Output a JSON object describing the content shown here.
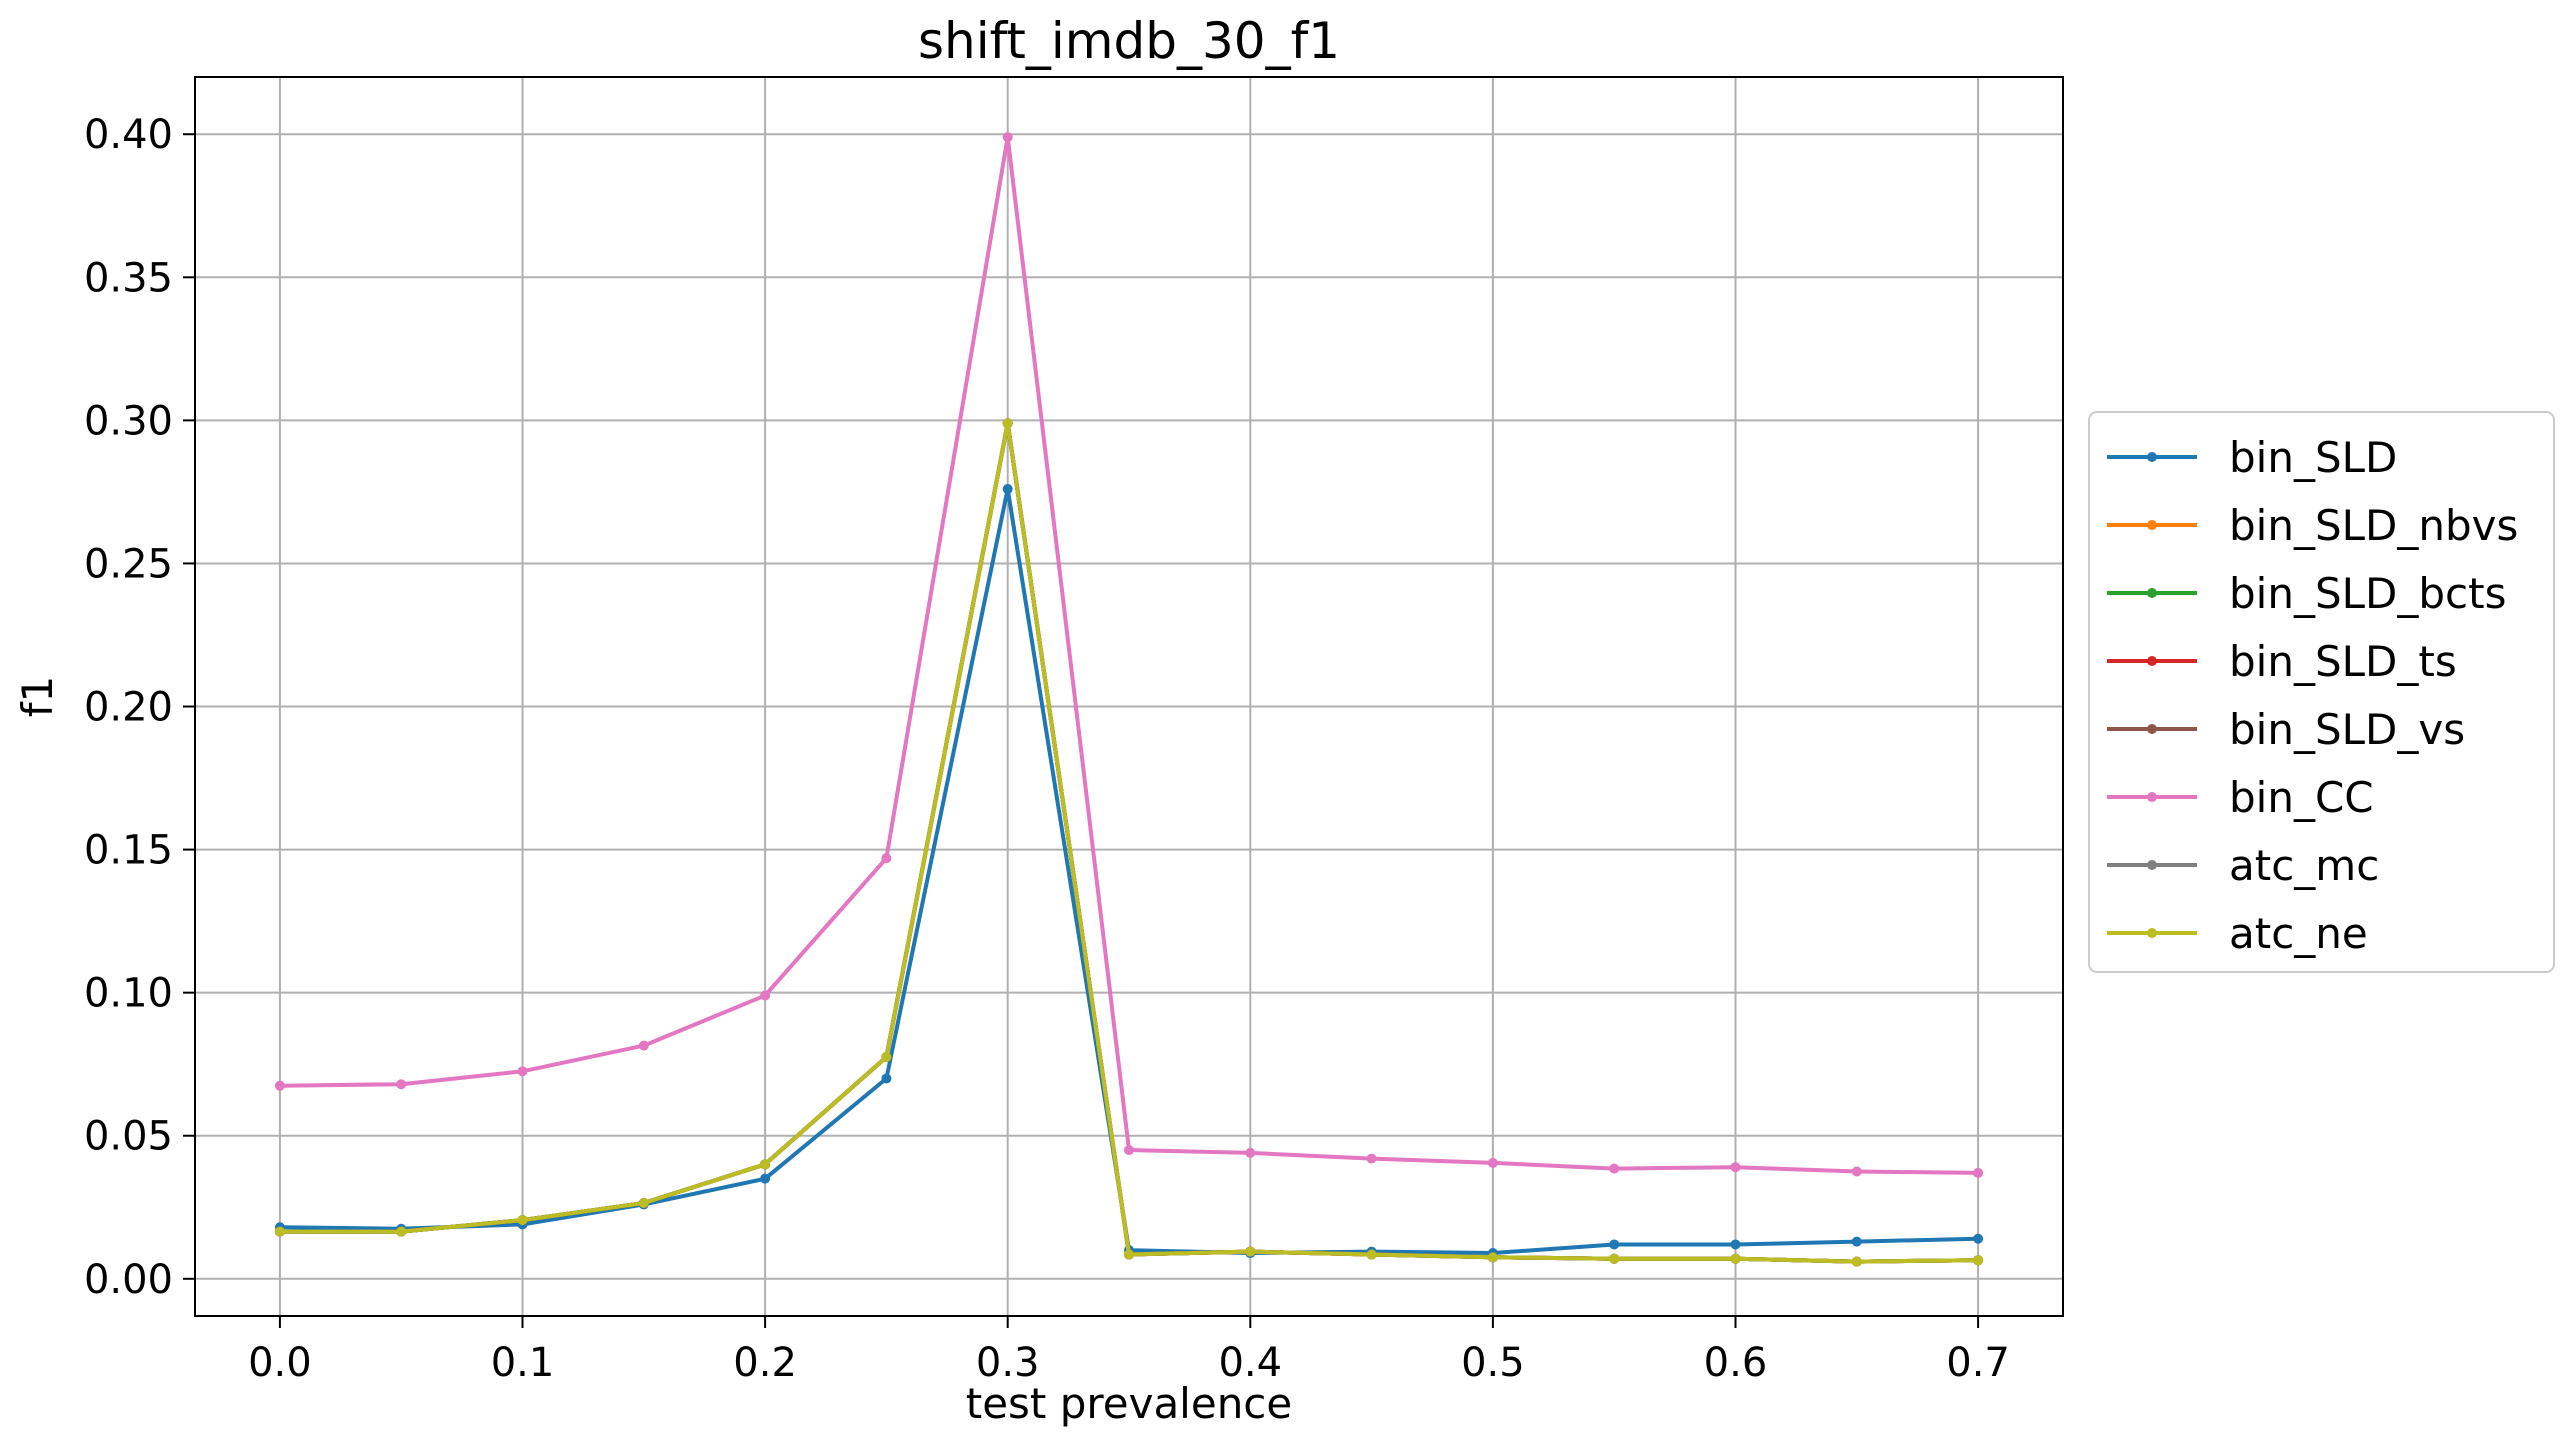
{
  "chart_data": {
    "type": "line",
    "title": "shift_imdb_30_f1",
    "xlabel": "test prevalence",
    "ylabel": "f1",
    "xlim": [
      -0.035,
      0.735
    ],
    "ylim": [
      -0.013,
      0.42
    ],
    "xticks": [
      0.0,
      0.1,
      0.2,
      0.3,
      0.4,
      0.5,
      0.6,
      0.7
    ],
    "xtick_labels": [
      "0.0",
      "0.1",
      "0.2",
      "0.3",
      "0.4",
      "0.5",
      "0.6",
      "0.7"
    ],
    "yticks": [
      0.0,
      0.05,
      0.1,
      0.15,
      0.2,
      0.25,
      0.3,
      0.35,
      0.4
    ],
    "ytick_labels": [
      "0.00",
      "0.05",
      "0.10",
      "0.15",
      "0.20",
      "0.25",
      "0.30",
      "0.35",
      "0.40"
    ],
    "grid": true,
    "legend_position": "right",
    "x": [
      0.0,
      0.05,
      0.1,
      0.15,
      0.2,
      0.25,
      0.3,
      0.35,
      0.4,
      0.45,
      0.5,
      0.55,
      0.6,
      0.65,
      0.7
    ],
    "series": [
      {
        "name": "bin_SLD",
        "color": "#1f77b4",
        "values": [
          0.018,
          0.0175,
          0.019,
          0.026,
          0.035,
          0.07,
          0.276,
          0.01,
          0.009,
          0.0095,
          0.009,
          0.012,
          0.012,
          0.013,
          0.014
        ]
      },
      {
        "name": "bin_SLD_nbvs",
        "color": "#ff7f0e",
        "values": [
          0.0165,
          0.0165,
          0.0205,
          0.0265,
          0.04,
          0.0775,
          0.299,
          0.0085,
          0.0095,
          0.0085,
          0.0075,
          0.007,
          0.007,
          0.006,
          0.0065
        ]
      },
      {
        "name": "bin_SLD_bcts",
        "color": "#2ca02c",
        "values": [
          0.0165,
          0.0165,
          0.0205,
          0.0265,
          0.04,
          0.0775,
          0.299,
          0.0085,
          0.0095,
          0.0085,
          0.0075,
          0.007,
          0.007,
          0.006,
          0.0065
        ]
      },
      {
        "name": "bin_SLD_ts",
        "color": "#d62728",
        "values": [
          0.0165,
          0.0165,
          0.0205,
          0.0265,
          0.04,
          0.0775,
          0.299,
          0.0085,
          0.0095,
          0.0085,
          0.0075,
          0.007,
          0.007,
          0.006,
          0.0065
        ]
      },
      {
        "name": "bin_SLD_vs",
        "color": "#8c564b",
        "values": [
          0.0165,
          0.0165,
          0.0205,
          0.0265,
          0.04,
          0.0775,
          0.299,
          0.0085,
          0.0095,
          0.0085,
          0.0075,
          0.007,
          0.007,
          0.006,
          0.0065
        ]
      },
      {
        "name": "bin_CC",
        "color": "#e377c2",
        "values": [
          0.0675,
          0.068,
          0.0725,
          0.0815,
          0.099,
          0.147,
          0.399,
          0.045,
          0.044,
          0.042,
          0.0405,
          0.0385,
          0.039,
          0.0375,
          0.037
        ]
      },
      {
        "name": "atc_mc",
        "color": "#7f7f7f",
        "values": [
          0.0165,
          0.0165,
          0.0205,
          0.0265,
          0.04,
          0.0775,
          0.299,
          0.0085,
          0.0095,
          0.0085,
          0.0075,
          0.007,
          0.007,
          0.006,
          0.0065
        ]
      },
      {
        "name": "atc_ne",
        "color": "#bcbd22",
        "values": [
          0.0165,
          0.0165,
          0.0205,
          0.0265,
          0.04,
          0.0775,
          0.299,
          0.0085,
          0.0095,
          0.0085,
          0.0075,
          0.007,
          0.007,
          0.006,
          0.0065
        ]
      }
    ]
  }
}
